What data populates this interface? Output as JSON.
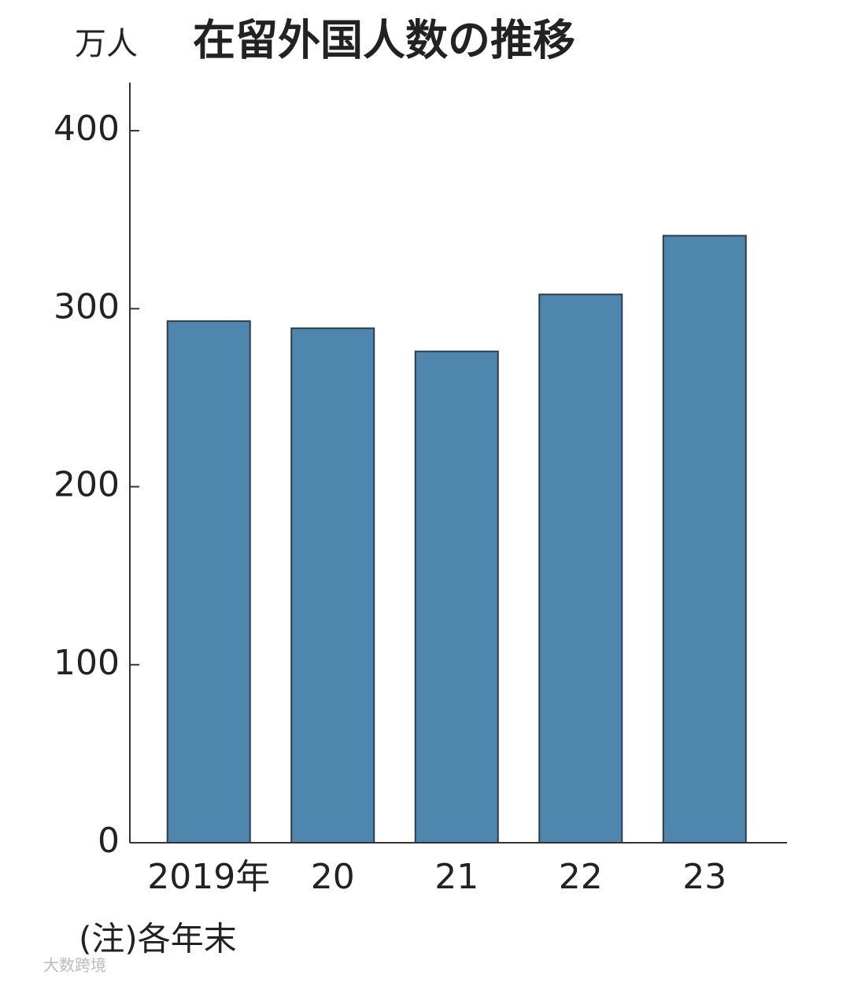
{
  "chart_data": {
    "type": "bar",
    "title": "在留外国人数の推移",
    "y_unit": "万人",
    "categories": [
      "2019年",
      "20",
      "21",
      "22",
      "23"
    ],
    "values": [
      293,
      289,
      276,
      308,
      341
    ],
    "color": "#4f86ad",
    "ylim": [
      0,
      427
    ],
    "yticks": [
      0,
      100,
      200,
      300,
      400
    ],
    "note": "(注)各年末",
    "watermark": "大数跨境"
  }
}
